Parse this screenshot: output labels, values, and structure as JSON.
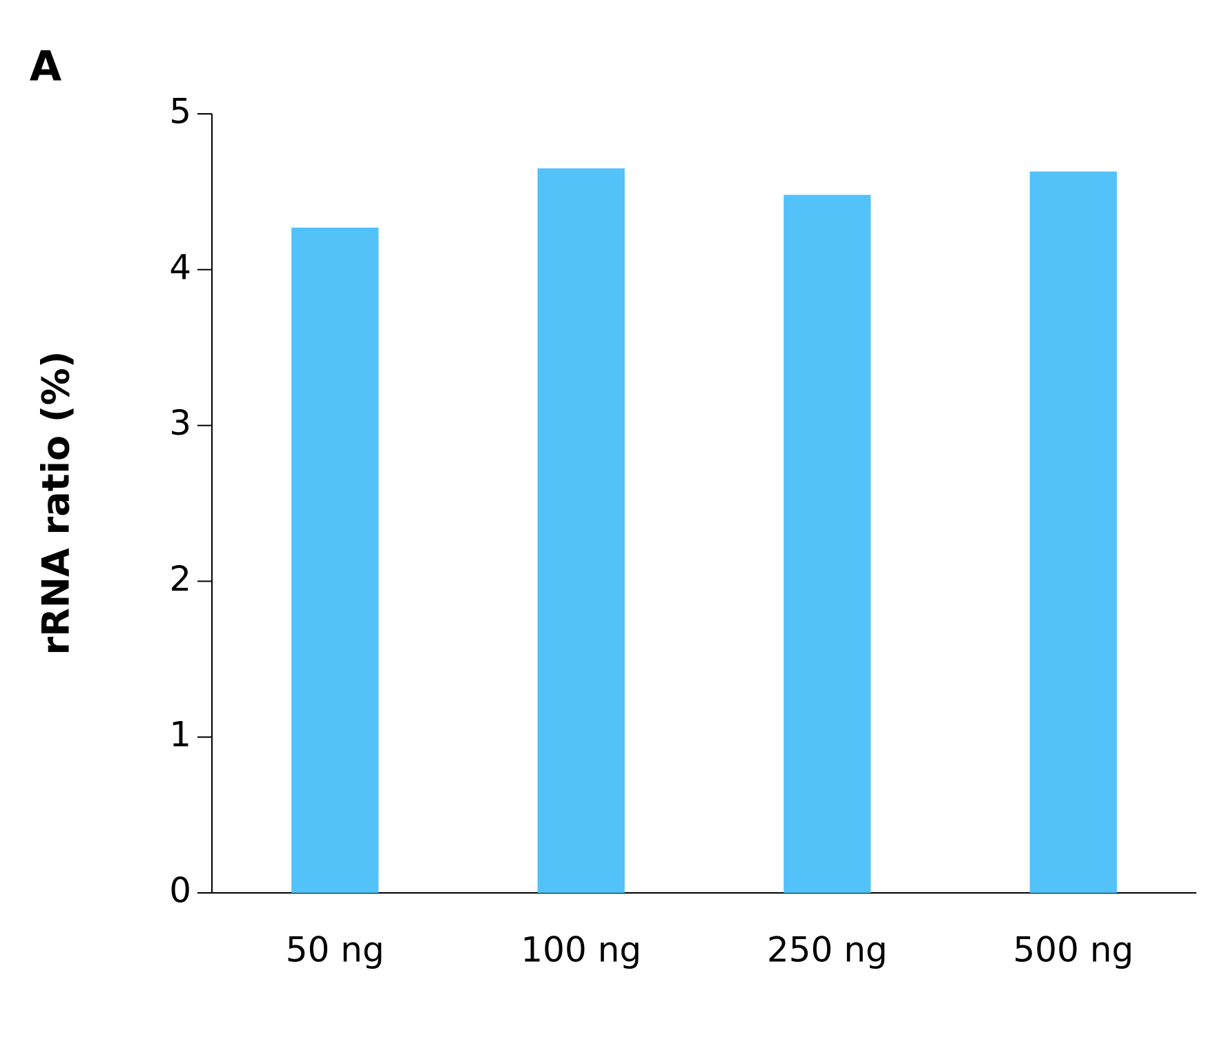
{
  "chart_data": {
    "type": "bar",
    "panel_label": "A",
    "y_label": "rRNA ratio (%)",
    "categories": [
      "50 ng",
      "100 ng",
      "250 ng",
      "500 ng"
    ],
    "values": [
      4.27,
      4.65,
      4.48,
      4.63
    ],
    "color": "#52c2f8",
    "ylim": [
      0,
      5
    ],
    "yticks": [
      0,
      1,
      2,
      3,
      4,
      5
    ],
    "grid": false
  }
}
